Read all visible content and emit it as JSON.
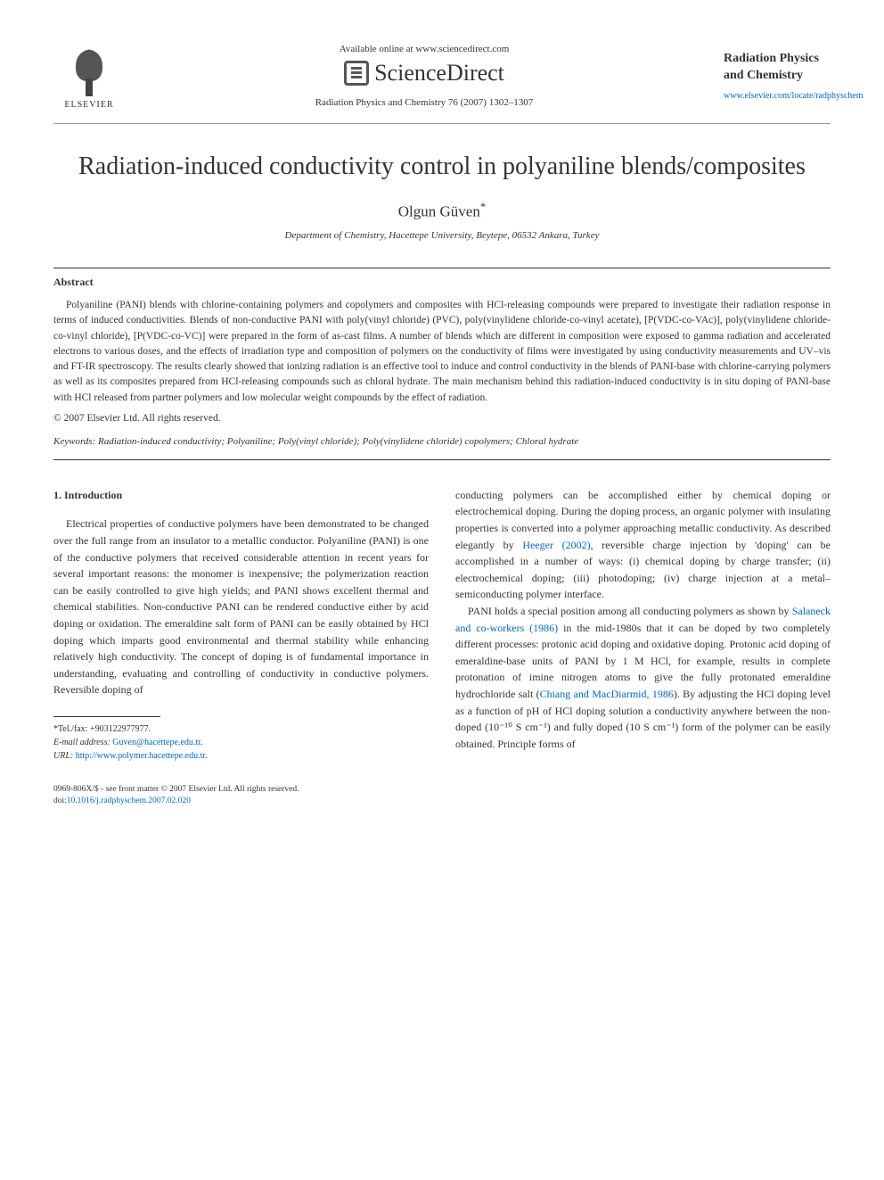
{
  "header": {
    "publisher": "ELSEVIER",
    "available_online": "Available online at www.sciencedirect.com",
    "sciencedirect": "ScienceDirect",
    "journal_ref": "Radiation Physics and Chemistry 76 (2007) 1302–1307",
    "journal_name": "Radiation Physics and Chemistry",
    "journal_link": "www.elsevier.com/locate/radphyschem"
  },
  "article": {
    "title": "Radiation-induced conductivity control in polyaniline blends/composites",
    "author": "Olgun Güven",
    "author_marker": "*",
    "affiliation": "Department of Chemistry, Hacettepe University, Beytepe, 06532 Ankara, Turkey"
  },
  "abstract": {
    "heading": "Abstract",
    "text": "Polyaniline (PANI) blends with chlorine-containing polymers and copolymers and composites with HCl-releasing compounds were prepared to investigate their radiation response in terms of induced conductivities. Blends of non-conductive PANI with poly(vinyl chloride) (PVC), poly(vinylidene chloride-co-vinyl acetate), [P(VDC-co-VAc)], poly(vinylidene chloride-co-vinyl chloride), [P(VDC-co-VC)] were prepared in the form of as-cast films. A number of blends which are different in composition were exposed to gamma radiation and accelerated electrons to various doses, and the effects of irradiation type and composition of polymers on the conductivity of films were investigated by using conductivity measurements and UV–vis and FT-IR spectroscopy. The results clearly showed that ionizing radiation is an effective tool to induce and control conductivity in the blends of PANI-base with chlorine-carrying polymers as well as its composites prepared from HCl-releasing compounds such as chloral hydrate. The main mechanism behind this radiation-induced conductivity is in situ doping of PANI-base with HCl released from partner polymers and low molecular weight compounds by the effect of radiation.",
    "copyright": "© 2007 Elsevier Ltd. All rights reserved."
  },
  "keywords": {
    "label": "Keywords:",
    "text": "Radiation-induced conductivity; Polyaniline; Poly(vinyl chloride); Poly(vinylidene chloride) copolymers; Chloral hydrate"
  },
  "body": {
    "intro_heading": "1. Introduction",
    "col1_p1": "Electrical properties of conductive polymers have been demonstrated to be changed over the full range from an insulator to a metallic conductor. Polyaniline (PANI) is one of the conductive polymers that received considerable attention in recent years for several important reasons: the monomer is inexpensive; the polymerization reaction can be easily controlled to give high yields; and PANI shows excellent thermal and chemical stabilities. Non-conductive PANI can be rendered conductive either by acid doping or oxidation. The emeraldine salt form of PANI can be easily obtained by HCl doping which imparts good environmental and thermal stability while enhancing relatively high conductivity. The concept of doping is of fundamental importance in understanding, evaluating and controlling of conductivity in conductive polymers. Reversible doping of",
    "col2_p1a": "conducting polymers can be accomplished either by chemical doping or electrochemical doping. During the doping process, an organic polymer with insulating properties is converted into a polymer approaching metallic conductivity. As described elegantly by ",
    "col2_heeger": "Heeger (2002)",
    "col2_p1b": ", reversible charge injection by 'doping' can be accomplished in a number of ways: (i) chemical doping by charge transfer; (ii) electrochemical doping; (iii) photodoping; (iv) charge injection at a metal–semiconducting polymer interface.",
    "col2_p2a": "PANI holds a special position among all conducting polymers as shown by ",
    "col2_salaneck": "Salaneck and co-workers (1986)",
    "col2_p2b": " in the mid-1980s that it can be doped by two completely different processes: protonic acid doping and oxidative doping. Protonic acid doping of emeraldine-base units of PANI by 1 M HCl, for example, results in complete protonation of imine nitrogen atoms to give the fully protonated emeraldine hydrochloride salt (",
    "col2_chiang": "Chiang and MacDiarmid, 1986",
    "col2_p2c": "). By adjusting the HCl doping level as a function of pH of HCl doping solution a conductivity anywhere between the non-doped (10⁻¹⁰ S cm⁻¹) and fully doped (10 S cm⁻¹) form of the polymer can be easily obtained. Principle forms of"
  },
  "footnote": {
    "corr_label": "*Tel./fax:",
    "corr_value": "+903122977977.",
    "email_label": "E-mail address:",
    "email_value": "Guven@hacettepe.edu.tr",
    "email_suffix": ".",
    "url_label": "URL:",
    "url_value": "http://www.polymer.hacettepe.edu.tr",
    "url_suffix": "."
  },
  "bottom": {
    "line1": "0969-806X/$ - see front matter © 2007 Elsevier Ltd. All rights reserved.",
    "doi_prefix": "doi:",
    "doi": "10.1016/j.radphyschem.2007.02.020"
  },
  "colors": {
    "text": "#333333",
    "link": "#0066cc",
    "background": "#ffffff",
    "rule": "#333333"
  },
  "typography": {
    "title_fontsize": 28,
    "author_fontsize": 17,
    "body_fontsize": 12,
    "abstract_fontsize": 11.5,
    "footnote_fontsize": 10,
    "font_family": "Georgia, Times New Roman, serif"
  }
}
